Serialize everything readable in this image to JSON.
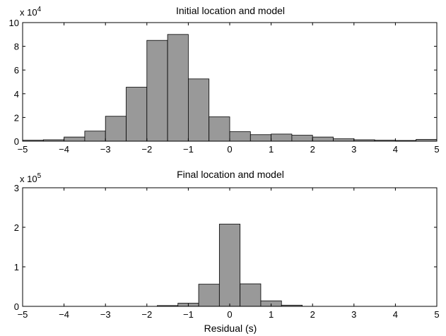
{
  "chart_data": [
    {
      "type": "bar",
      "title": "Initial location and model",
      "xlabel": "",
      "ylabel": "",
      "xlim": [
        -5,
        5
      ],
      "ylim": [
        0,
        10
      ],
      "x_ticks": [
        -5,
        -4,
        -3,
        -2,
        -1,
        0,
        1,
        2,
        3,
        4,
        5
      ],
      "y_ticks": [
        0,
        2,
        4,
        6,
        8,
        10
      ],
      "y_multiplier": {
        "base": "x 10",
        "exponent": "4"
      },
      "bin_width": 0.5,
      "bin_starts": [
        -5,
        -4.5,
        -4,
        -3.5,
        -3,
        -2.5,
        -2,
        -1.5,
        -1,
        -0.5,
        0,
        0.5,
        1,
        1.5,
        2,
        2.5,
        3,
        3.5,
        4,
        4.5
      ],
      "values": [
        0.08,
        0.12,
        0.35,
        0.85,
        2.1,
        4.55,
        8.5,
        9.0,
        5.25,
        2.05,
        0.8,
        0.55,
        0.6,
        0.5,
        0.35,
        0.2,
        0.12,
        0.08,
        0.06,
        0.15
      ],
      "bar_color": "#999999"
    },
    {
      "type": "bar",
      "title": "Final location and model",
      "xlabel": "Residual (s)",
      "ylabel": "",
      "xlim": [
        -5,
        5
      ],
      "ylim": [
        0,
        3
      ],
      "x_ticks": [
        -5,
        -4,
        -3,
        -2,
        -1,
        0,
        1,
        2,
        3,
        4,
        5
      ],
      "y_ticks": [
        0,
        1,
        2,
        3
      ],
      "y_multiplier": {
        "base": "x 10",
        "exponent": "5"
      },
      "bin_width": 0.5,
      "bin_starts": [
        -1.75,
        -1.25,
        -0.75,
        -0.25,
        0.25,
        0.75,
        1.25
      ],
      "values": [
        0.02,
        0.08,
        0.56,
        2.08,
        0.57,
        0.14,
        0.03
      ],
      "bar_color": "#999999"
    }
  ]
}
